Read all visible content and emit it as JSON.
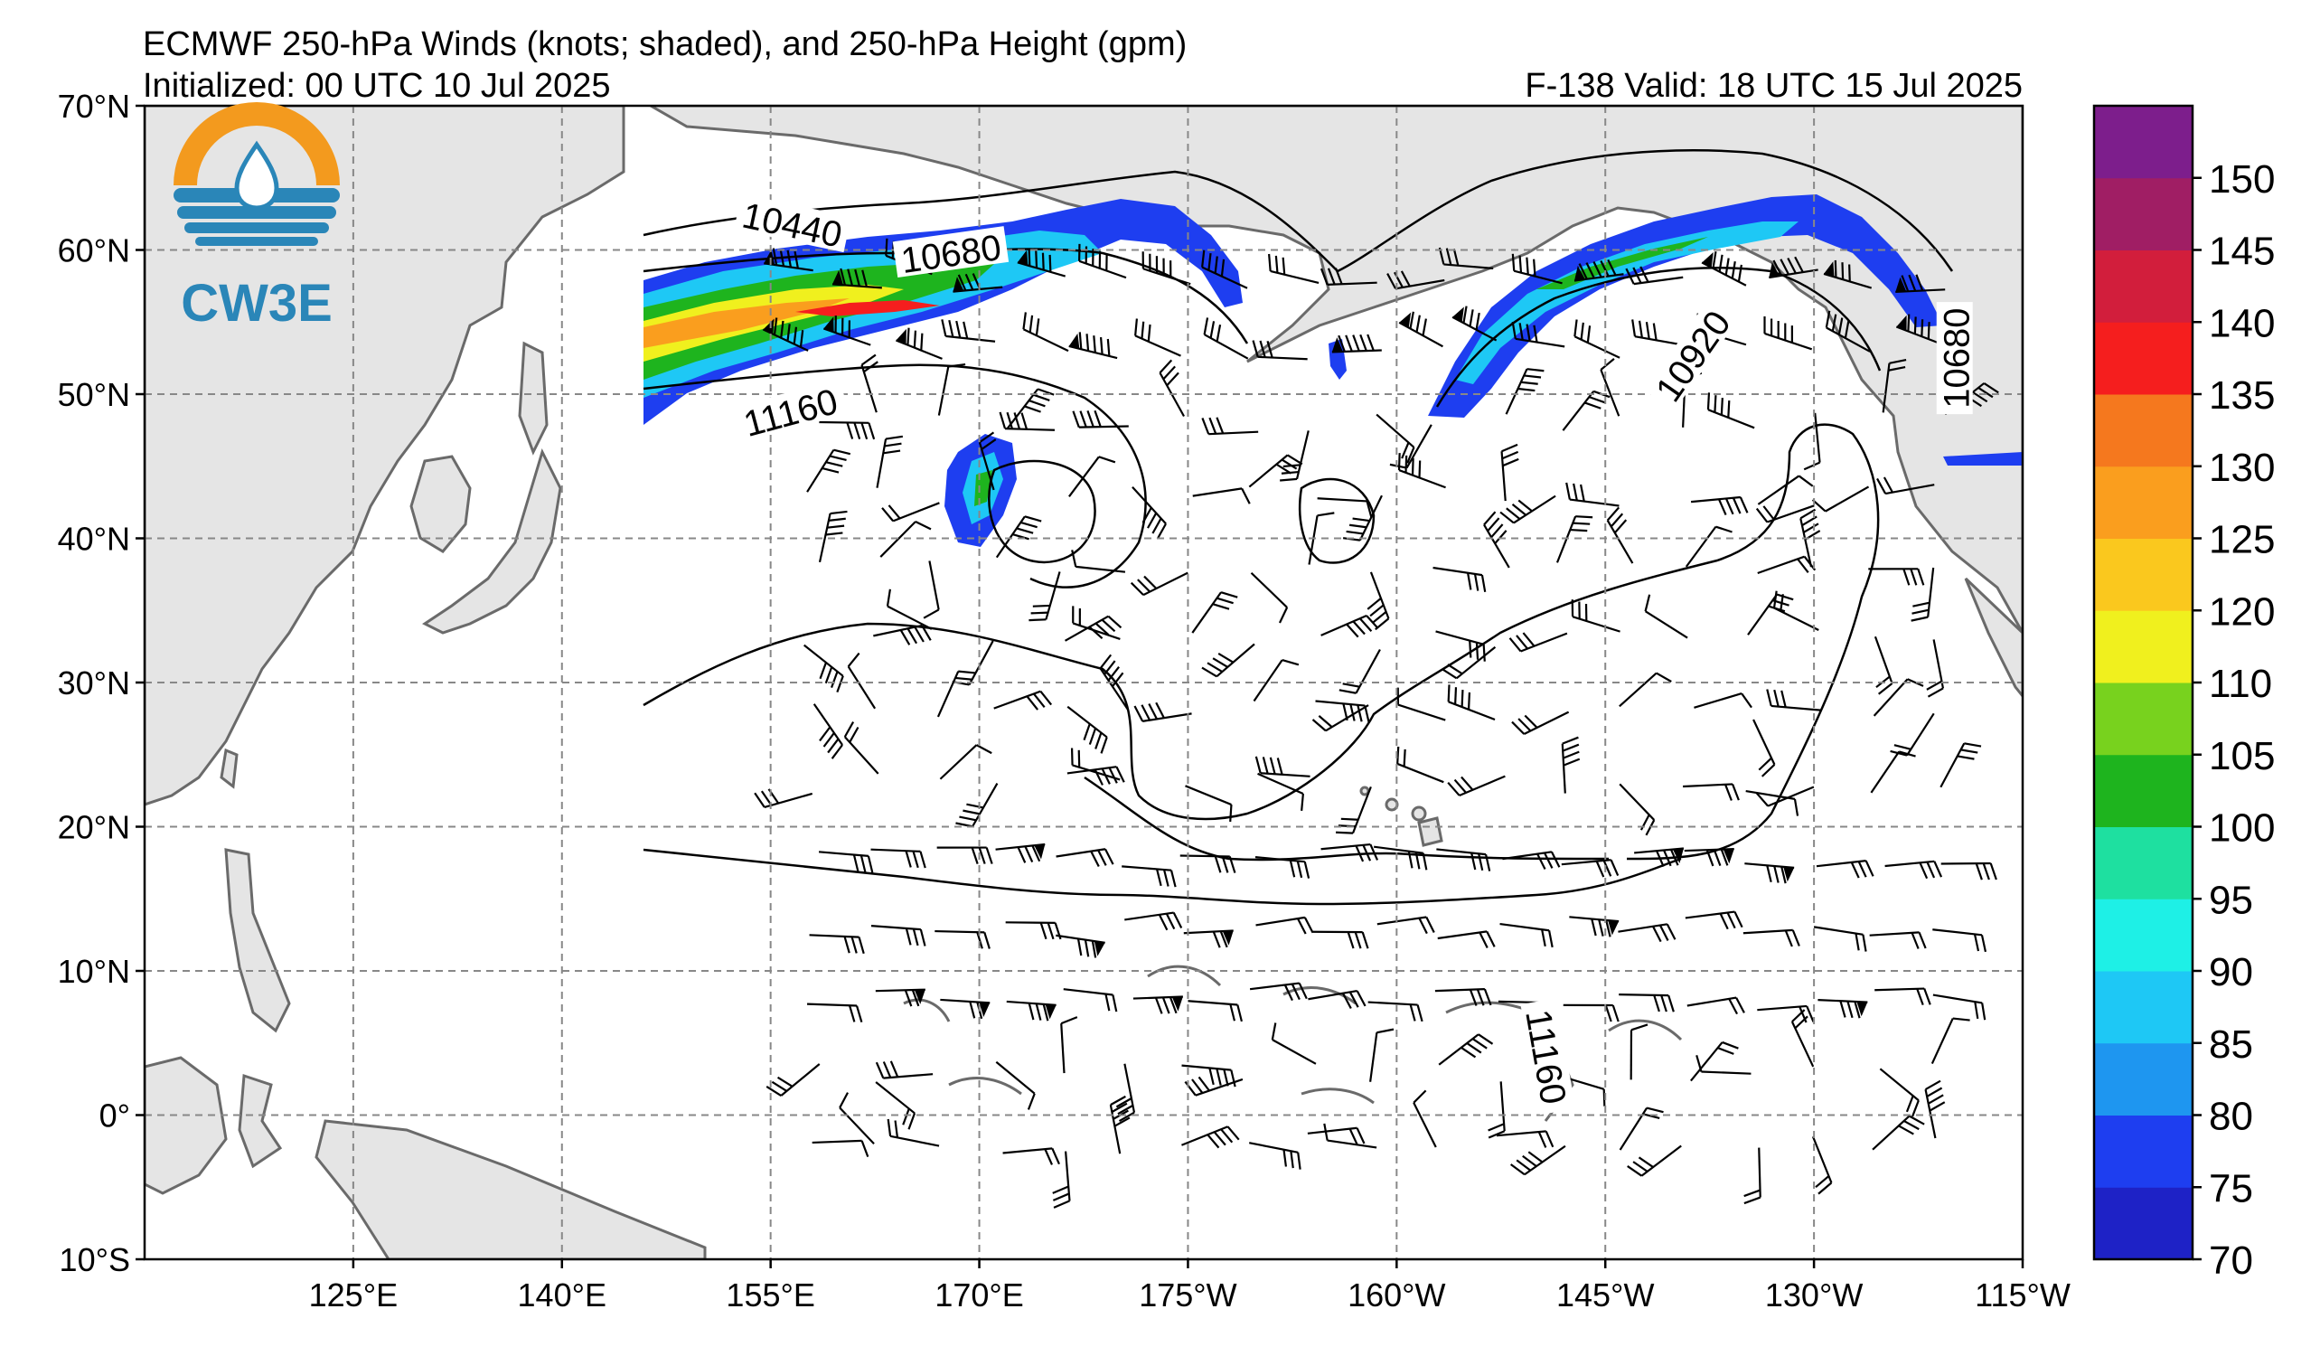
{
  "header": {
    "title": "ECMWF 250-hPa Winds (knots; shaded), and 250-hPa Height (gpm)",
    "initialized": "Initialized: 00 UTC 10 Jul 2025",
    "valid": "F-138  Valid: 18 UTC 15 Jul 2025"
  },
  "logo": {
    "text": "CW3E",
    "colors": {
      "sun": "#f39a1e",
      "water": "#2a86b8"
    }
  },
  "map": {
    "projection": "equirectangular",
    "lat_range": [
      -10,
      70
    ],
    "lon_range": [
      110,
      245
    ],
    "lat_ticks": [
      {
        "label": "70°N",
        "value": 70
      },
      {
        "label": "60°N",
        "value": 60
      },
      {
        "label": "50°N",
        "value": 50
      },
      {
        "label": "40°N",
        "value": 40
      },
      {
        "label": "30°N",
        "value": 30
      },
      {
        "label": "20°N",
        "value": 20
      },
      {
        "label": "10°N",
        "value": 10
      },
      {
        "label": "0°",
        "value": 0
      },
      {
        "label": "10°S",
        "value": -10
      }
    ],
    "lon_ticks": [
      {
        "label": "125°E",
        "value": 125
      },
      {
        "label": "140°E",
        "value": 140
      },
      {
        "label": "155°E",
        "value": 155
      },
      {
        "label": "170°E",
        "value": 170
      },
      {
        "label": "175°W",
        "value": 185
      },
      {
        "label": "160°W",
        "value": 200
      },
      {
        "label": "145°W",
        "value": 215
      },
      {
        "label": "130°W",
        "value": 230
      },
      {
        "label": "115°W",
        "value": 245
      }
    ],
    "grid": true,
    "land_color": "#e5e5e5",
    "coast_color": "#6a6a6a"
  },
  "contour_labels": [
    {
      "text": "10440",
      "lon": 156.5,
      "lat": 61.5,
      "angle": 12
    },
    {
      "text": "10680",
      "lon": 168,
      "lat": 59.5,
      "angle": -8
    },
    {
      "text": "11160",
      "lon": 156.5,
      "lat": 48.5,
      "angle": -15
    },
    {
      "text": "10920",
      "lon": 221.5,
      "lat": 52.5,
      "angle": -55
    },
    {
      "text": "10680",
      "lon": 240.5,
      "lat": 52.5,
      "angle": -90
    },
    {
      "text": "11160",
      "lon": 210.5,
      "lat": 4,
      "angle": 80
    }
  ],
  "wind_speed_shading": {
    "units": "knots",
    "levels": [
      70,
      75,
      80,
      85,
      90,
      95,
      100,
      105,
      110,
      120,
      125,
      130,
      135,
      140,
      145,
      150
    ],
    "colors": [
      "#1e22c6",
      "#1e3ef0",
      "#1e96f0",
      "#1ec8f5",
      "#1ef0e6",
      "#1ee0a0",
      "#1eb41e",
      "#78d21e",
      "#f0f01e",
      "#fac81e",
      "#fa9e1e",
      "#f5781e",
      "#f51e1e",
      "#d21e3c",
      "#a01e64",
      "#7d1e8c"
    ],
    "tick_labels": [
      "70",
      "75",
      "80",
      "85",
      "90",
      "95",
      "100",
      "105",
      "110",
      "120",
      "125",
      "130",
      "135",
      "140",
      "145",
      "150"
    ]
  }
}
